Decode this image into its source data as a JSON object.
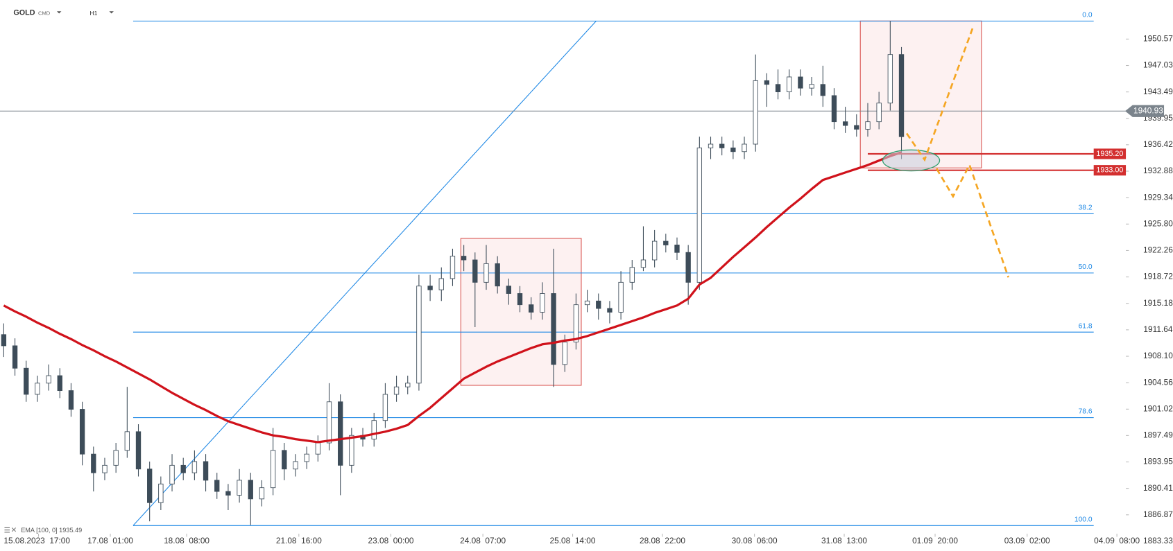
{
  "chart_data": {
    "type": "candlestick",
    "symbol": "GOLD",
    "market": "CMD",
    "timeframe": "H1",
    "indicator_label": "EMA [100, 0] 1935.49",
    "xlim": [
      -0.333,
      100
    ],
    "xticks": [
      {
        "value": 3.1,
        "label": "15.08.2023  17:00"
      },
      {
        "value": 9.5,
        "label": "17.08  01:00"
      },
      {
        "value": 16.3,
        "label": "18.08  08:00"
      },
      {
        "value": 26.3,
        "label": "21.08  16:00"
      },
      {
        "value": 34.5,
        "label": "23.08  00:00"
      },
      {
        "value": 42.7,
        "label": "24.08  07:00"
      },
      {
        "value": 50.7,
        "label": "25.08  14:00"
      },
      {
        "value": 58.7,
        "label": "28.08  22:00"
      },
      {
        "value": 66.9,
        "label": "30.08  06:00"
      },
      {
        "value": 74.9,
        "label": "31.08  13:00"
      },
      {
        "value": 83,
        "label": "01.09  20:00"
      },
      {
        "value": 91.2,
        "label": "03.09  02:00"
      },
      {
        "value": 99.2,
        "label": "04.09  08:00"
      }
    ],
    "ylim": [
      1883.33,
      1955.8
    ],
    "yticks": [
      1950.57,
      1947.03,
      1943.49,
      1939.95,
      1936.42,
      1932.88,
      1929.34,
      {
        "value": 1925.8,
        "label": "1925.80"
      },
      1922.26,
      1918.72,
      1915.18,
      1911.64,
      {
        "value": 1908.1,
        "label": "1908.10"
      },
      1904.56,
      1901.02,
      1897.49,
      1893.95,
      1890.41,
      1886.87,
      1883.33
    ],
    "series": {
      "up_color": "#ffffff",
      "down_color": "#3d4c59",
      "outline_color": "#3d4c59",
      "open": [
        1911.0,
        1909.5,
        1906.5,
        1903.0,
        1904.5,
        1905.5,
        1903.5,
        1901.0,
        1895.0,
        1892.5,
        1893.5,
        1895.5,
        1898.0,
        1893.0,
        1888.5,
        1891.0,
        1893.5,
        1892.5,
        1894.0,
        1891.5,
        1890.0,
        1889.5,
        1891.5,
        1889.0,
        1890.5,
        1895.5,
        1893.0,
        1894.0,
        1895.0,
        1896.5,
        1902.0,
        1893.5,
        1897.5,
        1897.0,
        1899.5,
        1903.0,
        1904.0,
        1904.5,
        1917.5,
        1917.0,
        1918.5,
        1921.5,
        1921.0,
        1918.0,
        1920.5,
        1917.5,
        1916.5,
        1915.0,
        1914.0,
        1916.5,
        1907.0,
        1910.0,
        1915.0,
        1915.5,
        1914.5,
        1914.0,
        1918.0,
        1920.0,
        1921.0,
        1923.5,
        1923.0,
        1922.0,
        1918.0,
        1936.0,
        1936.5,
        1936.0,
        1935.5,
        1936.5,
        1945.0,
        1944.5,
        1943.5,
        1945.5,
        1944.0,
        1944.5,
        1943.0,
        1939.5,
        1939.0,
        1938.5,
        1939.5,
        1942.0,
        1948.5
      ],
      "high": [
        1912.5,
        1910.5,
        1907.5,
        1905.5,
        1907.0,
        1906.5,
        1904.5,
        1902.0,
        1896.0,
        1894.5,
        1896.5,
        1904.0,
        1899.0,
        1894.0,
        1892.0,
        1895.0,
        1894.5,
        1895.5,
        1895.0,
        1892.5,
        1891.0,
        1893.0,
        1892.5,
        1891.5,
        1898.5,
        1896.5,
        1895.0,
        1896.0,
        1897.5,
        1904.5,
        1903.0,
        1898.5,
        1898.5,
        1900.5,
        1904.5,
        1905.5,
        1905.5,
        1919.0,
        1919.0,
        1920.0,
        1922.5,
        1923.0,
        1922.0,
        1923.0,
        1921.5,
        1918.5,
        1917.5,
        1916.0,
        1918.0,
        1922.5,
        1911.0,
        1916.5,
        1917.0,
        1916.5,
        1915.5,
        1919.5,
        1921.0,
        1925.5,
        1925.0,
        1924.5,
        1924.0,
        1923.0,
        1937.5,
        1937.5,
        1937.5,
        1937.0,
        1937.5,
        1948.5,
        1946.0,
        1946.5,
        1946.5,
        1946.5,
        1945.5,
        1947.0,
        1944.0,
        1941.5,
        1940.5,
        1942.0,
        1943.5,
        1953.0,
        1949.5
      ],
      "low": [
        1908.0,
        1905.5,
        1902.0,
        1902.0,
        1903.5,
        1902.5,
        1900.0,
        1893.5,
        1890.0,
        1891.5,
        1892.5,
        1894.5,
        1892.0,
        1886.0,
        1887.5,
        1890.0,
        1891.5,
        1891.5,
        1890.0,
        1889.0,
        1887.5,
        1888.5,
        1885.5,
        1888.0,
        1889.5,
        1891.5,
        1892.0,
        1893.0,
        1894.0,
        1895.5,
        1889.5,
        1892.5,
        1896.0,
        1896.0,
        1898.5,
        1902.0,
        1903.0,
        1903.5,
        1915.5,
        1915.5,
        1917.5,
        1919.5,
        1912.0,
        1917.0,
        1916.5,
        1915.0,
        1914.0,
        1913.0,
        1913.0,
        1904.0,
        1906.0,
        1909.0,
        1914.0,
        1913.0,
        1912.5,
        1913.0,
        1917.0,
        1919.5,
        1920.0,
        1922.0,
        1921.0,
        1915.0,
        1917.0,
        1934.5,
        1935.0,
        1934.5,
        1934.5,
        1935.5,
        1941.5,
        1942.5,
        1942.5,
        1943.0,
        1943.0,
        1941.5,
        1938.5,
        1938.0,
        1937.5,
        1937.5,
        1938.5,
        1941.0,
        1934.5
      ],
      "close": [
        1909.5,
        1906.5,
        1903.0,
        1904.5,
        1905.5,
        1903.5,
        1901.0,
        1895.0,
        1892.5,
        1893.5,
        1895.5,
        1898.0,
        1893.0,
        1888.5,
        1891.0,
        1893.5,
        1892.5,
        1894.0,
        1891.5,
        1890.0,
        1889.5,
        1891.5,
        1889.0,
        1890.5,
        1895.5,
        1893.0,
        1894.0,
        1895.0,
        1896.5,
        1902.0,
        1893.5,
        1897.5,
        1897.0,
        1899.5,
        1903.0,
        1904.0,
        1904.5,
        1917.5,
        1917.0,
        1918.5,
        1921.5,
        1921.0,
        1918.0,
        1920.5,
        1917.5,
        1916.5,
        1915.0,
        1914.0,
        1916.5,
        1907.0,
        1910.0,
        1915.0,
        1915.5,
        1914.5,
        1914.0,
        1918.0,
        1920.0,
        1921.0,
        1923.5,
        1923.0,
        1922.0,
        1918.0,
        1936.0,
        1936.5,
        1936.0,
        1935.5,
        1936.5,
        1945.0,
        1944.5,
        1943.5,
        1945.5,
        1944.0,
        1944.5,
        1943.0,
        1939.5,
        1939.0,
        1938.5,
        1939.5,
        1942.0,
        1948.5,
        1937.5
      ]
    },
    "ema": {
      "color": "#d0121b",
      "values": [
        1914.9,
        1914.1,
        1913.4,
        1912.6,
        1911.9,
        1911.1,
        1910.4,
        1909.6,
        1908.9,
        1908.1,
        1907.4,
        1906.6,
        1905.8,
        1905.0,
        1904.1,
        1903.2,
        1902.4,
        1901.6,
        1900.9,
        1900.1,
        1899.4,
        1898.9,
        1898.4,
        1897.9,
        1897.5,
        1897.3,
        1897.0,
        1896.8,
        1896.6,
        1896.8,
        1897.0,
        1897.2,
        1897.4,
        1897.7,
        1898.0,
        1898.4,
        1898.9,
        1900.1,
        1901.2,
        1902.5,
        1903.8,
        1905.1,
        1905.9,
        1906.7,
        1907.4,
        1908.0,
        1908.6,
        1909.2,
        1909.7,
        1909.9,
        1910.2,
        1910.4,
        1910.8,
        1911.3,
        1911.8,
        1912.3,
        1912.8,
        1913.3,
        1913.9,
        1914.4,
        1914.9,
        1915.8,
        1917.7,
        1918.6,
        1920.0,
        1921.4,
        1922.7,
        1924.0,
        1925.4,
        1926.7,
        1928.0,
        1929.2,
        1930.5,
        1931.7,
        1932.2,
        1932.7,
        1933.2,
        1933.7,
        1934.3,
        1934.9,
        1935.4
      ]
    },
    "current_price": {
      "value": 1940.93,
      "color": "#7b848c"
    },
    "price_levels": [
      {
        "value": 1935.2,
        "label": "1935.20"
      },
      {
        "value": 1933,
        "label": "1933.00"
      }
    ],
    "price_level_color": "#d32f2f",
    "fib_color": "#1e88e5",
    "fib_levels": [
      {
        "label": "0.0",
        "value": 1952.98
      },
      {
        "label": "38.2",
        "value": 1927.18
      },
      {
        "label": "50.0",
        "value": 1919.25
      },
      {
        "label": "61.8",
        "value": 1911.33
      },
      {
        "label": "78.6",
        "value": 1899.88
      },
      {
        "label": "100.0",
        "value": 1885.43
      }
    ]
  }
}
